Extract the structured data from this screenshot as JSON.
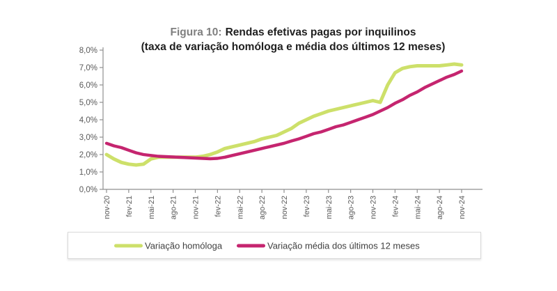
{
  "figure": {
    "title_prefix": "Figura 10:",
    "title_main": "Rendas efetivas pagas por inquilinos",
    "title_sub": "(taxa de variação homóloga e média dos últimos 12 meses)"
  },
  "chart_data": {
    "type": "line",
    "x": [
      "nov-20",
      "dez-20",
      "jan-21",
      "fev-21",
      "mar-21",
      "abr-21",
      "mai-21",
      "jun-21",
      "jul-21",
      "ago-21",
      "set-21",
      "out-21",
      "nov-21",
      "dez-21",
      "jan-22",
      "fev-22",
      "mar-22",
      "abr-22",
      "mai-22",
      "jun-22",
      "jul-22",
      "ago-22",
      "set-22",
      "out-22",
      "nov-22",
      "dez-22",
      "jan-23",
      "fev-23",
      "mar-23",
      "abr-23",
      "mai-23",
      "jun-23",
      "jul-23",
      "ago-23",
      "set-23",
      "out-23",
      "nov-23",
      "dez-23",
      "jan-24",
      "fev-24",
      "mar-24",
      "abr-24",
      "mai-24",
      "jun-24",
      "jul-24",
      "ago-24",
      "set-24",
      "out-24",
      "nov-24"
    ],
    "x_tick_labels": [
      "nov-20",
      "fev-21",
      "mai-21",
      "ago-21",
      "nov-21",
      "fev-22",
      "mai-22",
      "ago-22",
      "nov-22",
      "fev-23",
      "mai-23",
      "ago-23",
      "nov-23",
      "fev-24",
      "mai-24",
      "ago-24",
      "nov-24"
    ],
    "y_tick_labels": [
      "0,0%",
      "1,0%",
      "2,0%",
      "3,0%",
      "4,0%",
      "5,0%",
      "6,0%",
      "7,0%",
      "8,0%"
    ],
    "ylim": [
      0,
      8
    ],
    "grid": false,
    "legend_position": "bottom",
    "series": [
      {
        "name": "Variação homóloga",
        "color": "#cde06a",
        "values": [
          2.0,
          1.75,
          1.55,
          1.45,
          1.4,
          1.45,
          1.75,
          1.85,
          1.85,
          1.85,
          1.85,
          1.85,
          1.85,
          1.9,
          2.0,
          2.15,
          2.35,
          2.45,
          2.55,
          2.65,
          2.75,
          2.9,
          3.0,
          3.1,
          3.3,
          3.5,
          3.8,
          4.0,
          4.2,
          4.35,
          4.5,
          4.6,
          4.7,
          4.8,
          4.9,
          5.0,
          5.1,
          5.0,
          6.0,
          6.7,
          6.95,
          7.05,
          7.1,
          7.1,
          7.1,
          7.1,
          7.15,
          7.2,
          7.15
        ]
      },
      {
        "name": "Variação média dos últimos 12 meses",
        "color": "#c5256f",
        "values": [
          2.65,
          2.5,
          2.4,
          2.25,
          2.1,
          2.0,
          1.95,
          1.9,
          1.88,
          1.86,
          1.84,
          1.82,
          1.8,
          1.78,
          1.76,
          1.78,
          1.85,
          1.95,
          2.05,
          2.15,
          2.25,
          2.35,
          2.45,
          2.55,
          2.65,
          2.78,
          2.9,
          3.05,
          3.2,
          3.3,
          3.45,
          3.6,
          3.7,
          3.85,
          4.0,
          4.15,
          4.3,
          4.5,
          4.7,
          4.95,
          5.15,
          5.4,
          5.6,
          5.85,
          6.05,
          6.25,
          6.45,
          6.6,
          6.8
        ]
      }
    ],
    "axis_text_color": "#595959",
    "axis_line_color": "#8f8f8f"
  }
}
